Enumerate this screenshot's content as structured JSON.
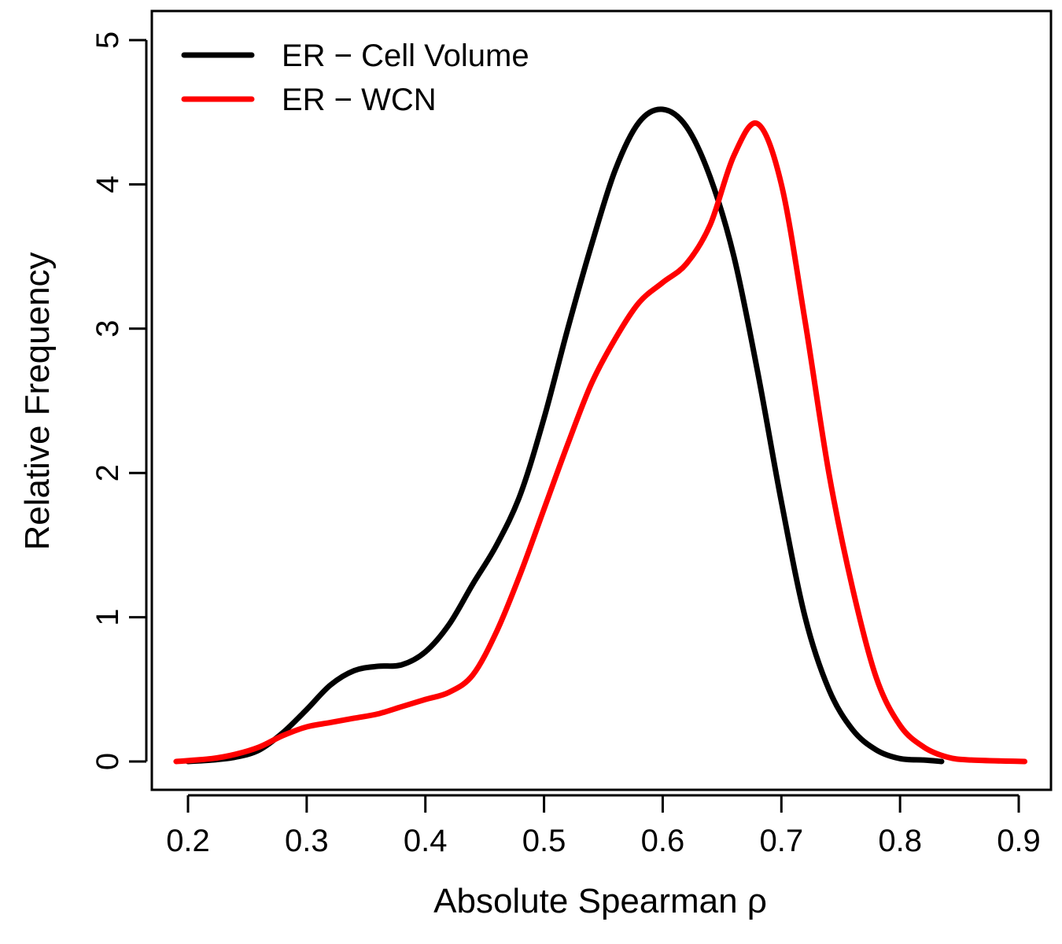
{
  "chart_data": {
    "type": "line",
    "title": "",
    "xlabel": "Absolute Spearman ρ",
    "ylabel": "Relative Frequency",
    "xlim": [
      0.2,
      0.9
    ],
    "ylim": [
      0,
      5
    ],
    "x_ticks": [
      "0.2",
      "0.3",
      "0.4",
      "0.5",
      "0.6",
      "0.7",
      "0.8",
      "0.9"
    ],
    "y_ticks": [
      "0",
      "1",
      "2",
      "3",
      "4",
      "5"
    ],
    "grid": false,
    "legend_position": "top-left",
    "series": [
      {
        "name": "ER − Cell Volume",
        "color": "#000000",
        "points": [
          [
            0.2,
            0.0
          ],
          [
            0.22,
            0.01
          ],
          [
            0.24,
            0.03
          ],
          [
            0.26,
            0.08
          ],
          [
            0.28,
            0.2
          ],
          [
            0.3,
            0.36
          ],
          [
            0.32,
            0.53
          ],
          [
            0.34,
            0.63
          ],
          [
            0.36,
            0.66
          ],
          [
            0.38,
            0.67
          ],
          [
            0.4,
            0.76
          ],
          [
            0.42,
            0.95
          ],
          [
            0.44,
            1.23
          ],
          [
            0.46,
            1.5
          ],
          [
            0.48,
            1.85
          ],
          [
            0.5,
            2.38
          ],
          [
            0.52,
            3.0
          ],
          [
            0.54,
            3.58
          ],
          [
            0.56,
            4.1
          ],
          [
            0.58,
            4.43
          ],
          [
            0.6,
            4.52
          ],
          [
            0.62,
            4.4
          ],
          [
            0.64,
            4.05
          ],
          [
            0.66,
            3.5
          ],
          [
            0.68,
            2.7
          ],
          [
            0.7,
            1.8
          ],
          [
            0.72,
            1.0
          ],
          [
            0.74,
            0.5
          ],
          [
            0.76,
            0.22
          ],
          [
            0.78,
            0.08
          ],
          [
            0.8,
            0.02
          ],
          [
            0.82,
            0.01
          ],
          [
            0.835,
            0.0
          ]
        ]
      },
      {
        "name": "ER − WCN",
        "color": "#ff0000",
        "points": [
          [
            0.19,
            0.0
          ],
          [
            0.22,
            0.02
          ],
          [
            0.24,
            0.05
          ],
          [
            0.26,
            0.1
          ],
          [
            0.28,
            0.18
          ],
          [
            0.3,
            0.24
          ],
          [
            0.32,
            0.27
          ],
          [
            0.34,
            0.3
          ],
          [
            0.36,
            0.33
          ],
          [
            0.38,
            0.38
          ],
          [
            0.4,
            0.43
          ],
          [
            0.42,
            0.48
          ],
          [
            0.44,
            0.6
          ],
          [
            0.46,
            0.9
          ],
          [
            0.48,
            1.3
          ],
          [
            0.5,
            1.75
          ],
          [
            0.52,
            2.2
          ],
          [
            0.54,
            2.62
          ],
          [
            0.56,
            2.93
          ],
          [
            0.58,
            3.18
          ],
          [
            0.6,
            3.32
          ],
          [
            0.62,
            3.45
          ],
          [
            0.64,
            3.72
          ],
          [
            0.66,
            4.2
          ],
          [
            0.68,
            4.42
          ],
          [
            0.7,
            4.0
          ],
          [
            0.72,
            3.05
          ],
          [
            0.74,
            2.0
          ],
          [
            0.76,
            1.2
          ],
          [
            0.78,
            0.58
          ],
          [
            0.8,
            0.25
          ],
          [
            0.82,
            0.1
          ],
          [
            0.84,
            0.03
          ],
          [
            0.86,
            0.01
          ],
          [
            0.905,
            0.0
          ]
        ]
      }
    ]
  }
}
